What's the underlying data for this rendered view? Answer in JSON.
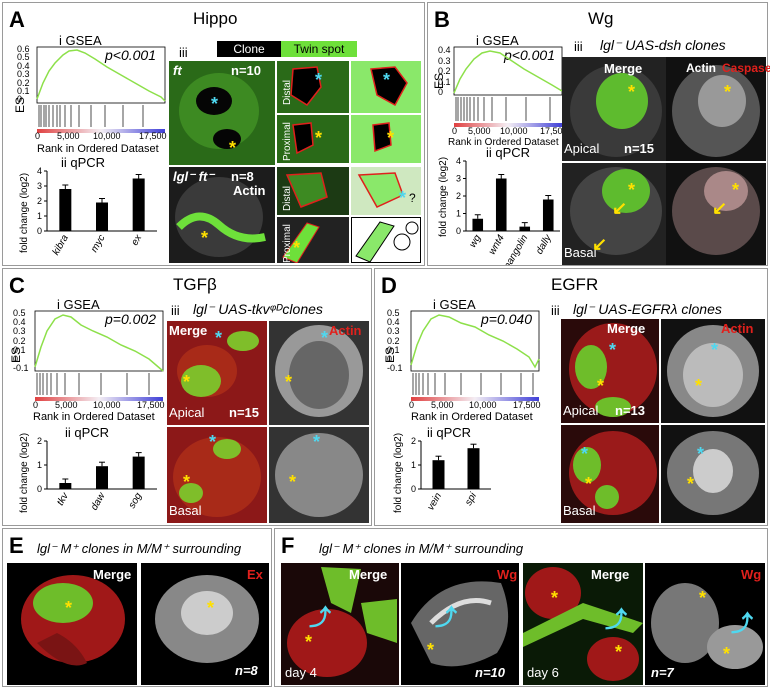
{
  "panels": {
    "A": {
      "letter": "A",
      "title": "Hippo",
      "gsea": {
        "label": "i  GSEA",
        "p": "p<0.001",
        "es": "ES",
        "yticks": [
          "0.6",
          "0.5",
          "0.4",
          "0.3",
          "0.2",
          "0.1",
          "0"
        ],
        "xticks": [
          "0",
          "5,000",
          "10,000",
          "17,500"
        ],
        "xlabel": "Rank in Ordered Dataset"
      },
      "qpcr": {
        "label": "ii qPCR",
        "ylabel": "fold change (log2)",
        "yticks": [
          "4",
          "3",
          "2",
          "1",
          "0"
        ],
        "genes": [
          "kibra",
          "myc",
          "ex"
        ],
        "values": [
          2.8,
          1.9,
          3.5
        ]
      },
      "iii": {
        "label": "iii",
        "clone": "Clone",
        "twin": "Twin spot",
        "row1": "ft",
        "n1": "n=10",
        "row2": "lgl⁻ ft⁻",
        "n2": "n=8",
        "actin": "Actin",
        "distal": "Distal",
        "proximal": "Proximal",
        "q": "?"
      }
    },
    "B": {
      "letter": "B",
      "title": "Wg",
      "gsea": {
        "label": "i  GSEA",
        "p": "p<0.001",
        "es": "ES",
        "yticks": [
          "0.4",
          "0.3",
          "0.2",
          "0.1",
          "0"
        ],
        "xticks": [
          "0",
          "5,000",
          "10,000",
          "17,500"
        ],
        "xlabel": "Rank in Ordered Dataset"
      },
      "qpcr": {
        "label": "ii qPCR",
        "ylabel": "fold change (log2)",
        "yticks": [
          "4",
          "3",
          "2",
          "1",
          "0"
        ],
        "genes": [
          "wg",
          "wnt4",
          "pangolin",
          "dally"
        ],
        "values": [
          0.7,
          3.0,
          0.25,
          1.8
        ]
      },
      "iii": {
        "label": "iii",
        "title": "lgl⁻ UAS-dsh  clones",
        "merge": "Merge",
        "actin": "Actin",
        "caspase": "Caspase",
        "apical": "Apical",
        "n": "n=15",
        "basal": "Basal"
      }
    },
    "C": {
      "letter": "C",
      "title": "TGFβ",
      "gsea": {
        "label": "i  GSEA",
        "p": "p=0.002",
        "es": "ES",
        "yticks": [
          "0.5",
          "0.4",
          "0.3",
          "0.2",
          "0.1",
          "0",
          "-0.1"
        ],
        "xticks": [
          "0",
          "5,000",
          "10,000",
          "17,500"
        ],
        "xlabel": "Rank in Ordered Dataset"
      },
      "qpcr": {
        "label": "ii qPCR",
        "ylabel": "fold change (log2)",
        "yticks": [
          "2",
          "1",
          "0"
        ],
        "genes": [
          "tkv",
          "daw",
          "sog"
        ],
        "values": [
          0.25,
          0.95,
          1.35
        ]
      },
      "iii": {
        "label": "iii",
        "title": "lgl⁻ UAS-tkvᵠᴰclones",
        "merge": "Merge",
        "actin": "Actin",
        "apical": "Apical",
        "n": "n=15",
        "basal": "Basal"
      }
    },
    "D": {
      "letter": "D",
      "title": "EGFR",
      "gsea": {
        "label": "i  GSEA",
        "p": "p=0.040",
        "es": "ES",
        "yticks": [
          "0.5",
          "0.4",
          "0.3",
          "0.2",
          "0.1",
          "0",
          "-0.1"
        ],
        "xticks": [
          "0",
          "5,000",
          "10,000",
          "17,500"
        ],
        "xlabel": "Rank in Ordered Dataset"
      },
      "qpcr": {
        "label": "ii qPCR",
        "ylabel": "fold change (log2)",
        "yticks": [
          "2",
          "1",
          "0"
        ],
        "genes": [
          "vein",
          "spi"
        ],
        "values": [
          1.2,
          1.7
        ]
      },
      "iii": {
        "label": "iii",
        "title": "lgl⁻ UAS-EGFRλ clones",
        "merge": "Merge",
        "actin": "Actin",
        "apical": "Apical",
        "n": "n=13",
        "basal": "Basal"
      }
    },
    "E": {
      "letter": "E",
      "title": "lgl⁻ M⁺ clones in M/M⁺ surrounding",
      "merge": "Merge",
      "ex": "Ex",
      "n": "n=8"
    },
    "F": {
      "letter": "F",
      "title": "lgl⁻ M⁺ clones in M/M⁺ surrounding",
      "merge": "Merge",
      "wg": "Wg",
      "day4": "day 4",
      "n1": "n=10",
      "day6": "day 6",
      "n2": "n=7"
    }
  },
  "colors": {
    "gsea_line": "#8de04a",
    "clone_green": "#6ee03a",
    "actin_red": "#e0201c",
    "star_yellow": "#ffe000",
    "star_cyan": "#4fd8f0",
    "bar": "#000000"
  }
}
